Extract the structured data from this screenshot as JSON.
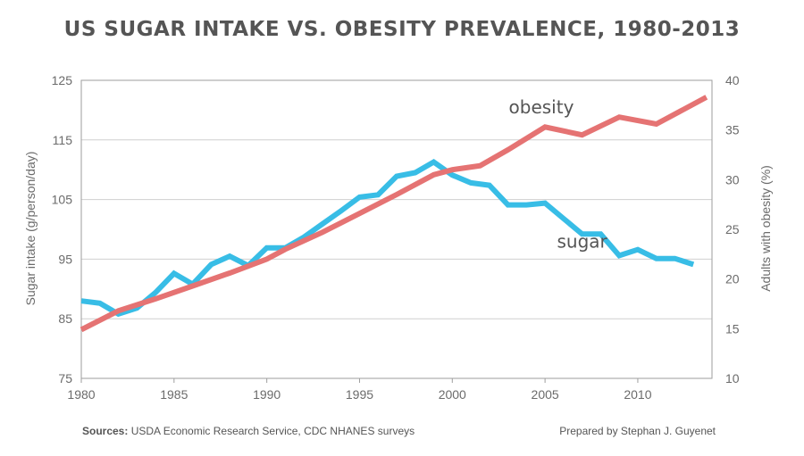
{
  "chart_data": {
    "type": "line",
    "title": "US SUGAR INTAKE VS. OBESITY PREVALENCE, 1980-2013",
    "xlabel": "",
    "ylabel_left": "Sugar intake (g/person/day)",
    "ylabel_right": "Adults with obesity (%)",
    "xlim": [
      1980,
      2014
    ],
    "ylim_left": [
      75,
      125
    ],
    "ylim_right": [
      10,
      40
    ],
    "x_ticks": [
      1980,
      1985,
      1990,
      1995,
      2000,
      2005,
      2010
    ],
    "y_ticks_left": [
      75,
      85,
      95,
      105,
      115,
      125
    ],
    "y_ticks_right": [
      10,
      15,
      20,
      25,
      30,
      35,
      40
    ],
    "grid": "horizontal",
    "series": [
      {
        "name": "sugar",
        "axis": "left",
        "color": "#38bde6",
        "points": [
          [
            1980,
            88.0
          ],
          [
            1981,
            87.6
          ],
          [
            1982,
            85.8
          ],
          [
            1983,
            86.8
          ],
          [
            1984,
            89.4
          ],
          [
            1985,
            92.6
          ],
          [
            1986,
            90.8
          ],
          [
            1987,
            94.1
          ],
          [
            1988,
            95.5
          ],
          [
            1989,
            93.9
          ],
          [
            1990,
            96.9
          ],
          [
            1991,
            96.9
          ],
          [
            1992,
            98.7
          ],
          [
            1993,
            100.9
          ],
          [
            1994,
            103.1
          ],
          [
            1995,
            105.4
          ],
          [
            1996,
            105.8
          ],
          [
            1997,
            108.9
          ],
          [
            1998,
            109.5
          ],
          [
            1999,
            111.3
          ],
          [
            2000,
            109.1
          ],
          [
            2001,
            107.8
          ],
          [
            2002,
            107.4
          ],
          [
            2003,
            104.1
          ],
          [
            2004,
            104.1
          ],
          [
            2005,
            104.4
          ],
          [
            2006,
            101.8
          ],
          [
            2007,
            99.2
          ],
          [
            2008,
            99.2
          ],
          [
            2009,
            95.6
          ],
          [
            2010,
            96.6
          ],
          [
            2011,
            95.1
          ],
          [
            2012,
            95.1
          ],
          [
            2013,
            94.1
          ]
        ]
      },
      {
        "name": "obesity",
        "axis": "right",
        "color": "#e57373",
        "points": [
          [
            1980,
            14.9
          ],
          [
            1982,
            16.8
          ],
          [
            1984,
            18.0
          ],
          [
            1986,
            19.3
          ],
          [
            1988,
            20.6
          ],
          [
            1990,
            22.0
          ],
          [
            1991,
            23.0
          ],
          [
            1993,
            24.7
          ],
          [
            1995,
            26.6
          ],
          [
            1997,
            28.5
          ],
          [
            1999,
            30.5
          ],
          [
            2000,
            31.0
          ],
          [
            2001.5,
            31.4
          ],
          [
            2003,
            33.0
          ],
          [
            2005,
            35.3
          ],
          [
            2007,
            34.5
          ],
          [
            2009,
            36.3
          ],
          [
            2011,
            35.6
          ],
          [
            2013.7,
            38.3
          ]
        ]
      }
    ]
  },
  "footer": {
    "sources_label": "Sources:",
    "sources_text": " USDA Economic Research Service, CDC NHANES surveys",
    "prepared": "Prepared by Stephan J. Guyenet"
  }
}
